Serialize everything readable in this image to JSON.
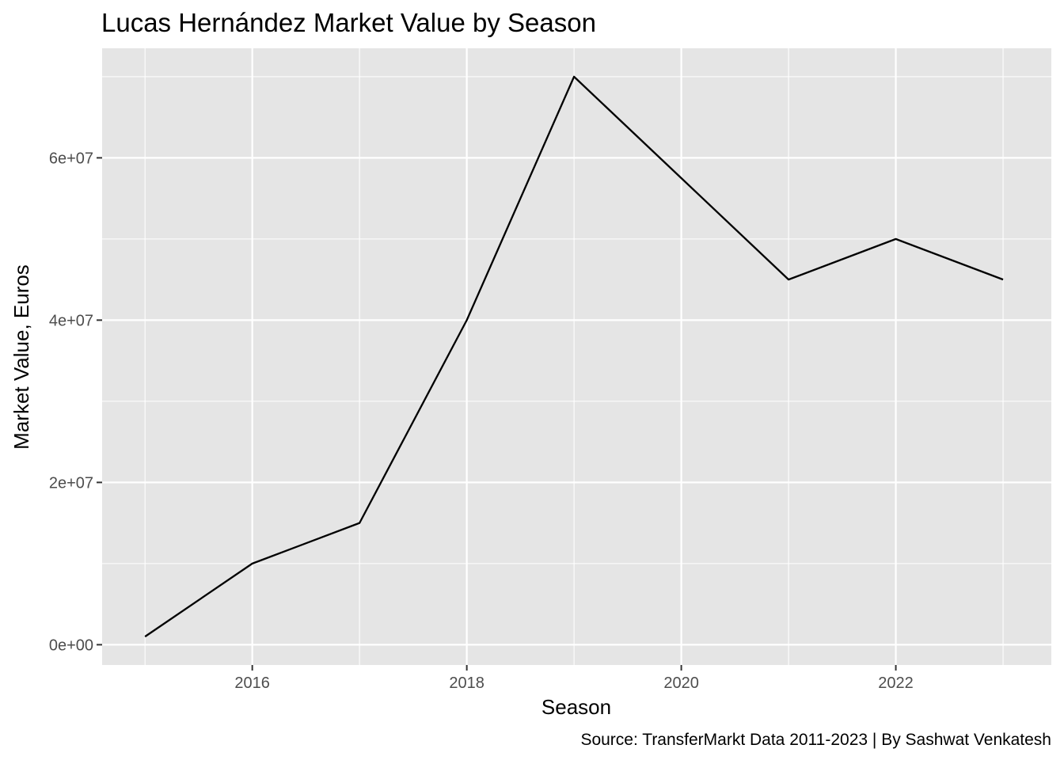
{
  "chart_data": {
    "type": "line",
    "title": "Lucas Hernández Market Value by Season",
    "xlabel": "Season",
    "ylabel": "Market Value, Euros",
    "caption": "Source: TransferMarkt Data 2011-2023 | By Sashwat Venkatesh",
    "x": [
      2015,
      2016,
      2017,
      2018,
      2019,
      2020,
      2021,
      2022,
      2023
    ],
    "series": [
      {
        "values": [
          1000000,
          10000000,
          15000000,
          40000000,
          70000000,
          57500000,
          45000000,
          50000000,
          45000000
        ]
      }
    ],
    "xlim": [
      2014.6,
      2023.45
    ],
    "ylim": [
      -2500000,
      73500000
    ],
    "x_ticks": [
      2016,
      2018,
      2020,
      2022
    ],
    "x_tick_labels": [
      "2016",
      "2018",
      "2020",
      "2022"
    ],
    "x_minor_ticks": [
      2015,
      2017,
      2019,
      2021,
      2023
    ],
    "y_ticks": [
      0,
      20000000,
      40000000,
      60000000
    ],
    "y_tick_labels": [
      "0e+00",
      "2e+07",
      "4e+07",
      "6e+07"
    ],
    "y_minor_ticks": [
      10000000,
      30000000,
      50000000,
      70000000
    ],
    "grid": true,
    "legend": "none",
    "colors": {
      "panel_background": "#e5e5e5",
      "grid": "#ffffff",
      "line": "#000000",
      "tick_text": "#4d4d4d",
      "tick_mark": "#333333"
    }
  }
}
